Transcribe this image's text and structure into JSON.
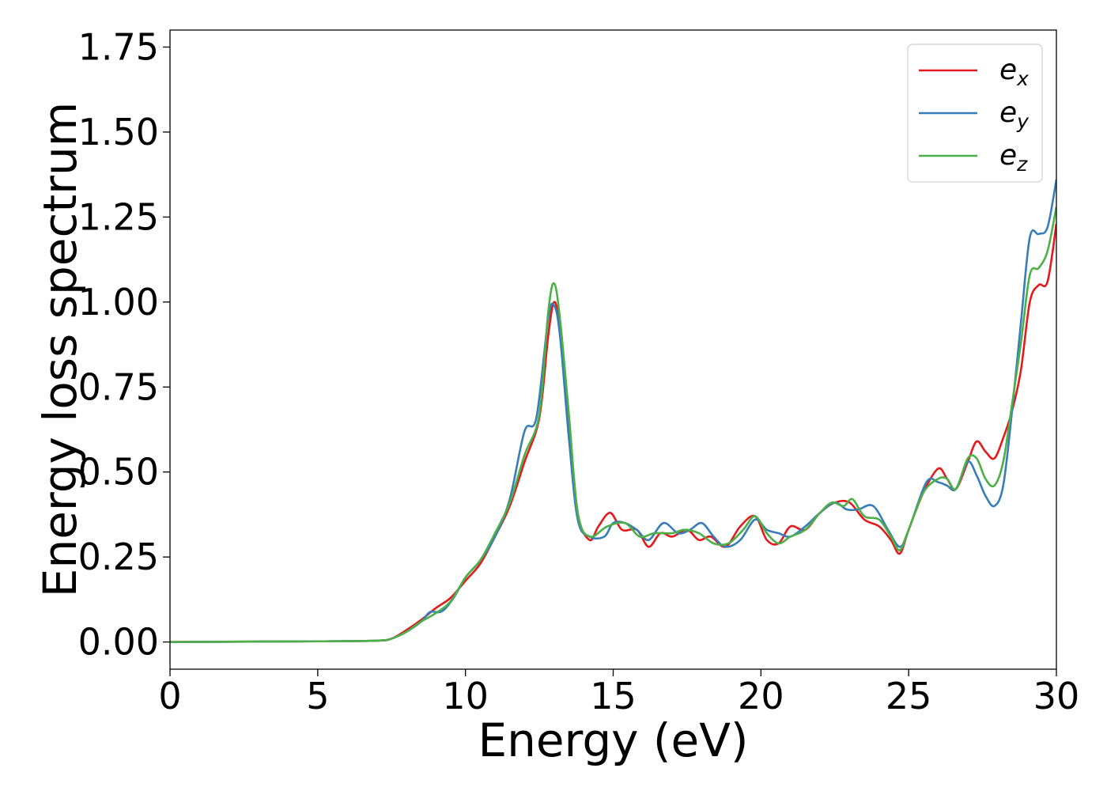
{
  "chart_data": {
    "type": "line",
    "title": "",
    "xlabel": "Energy (eV)",
    "ylabel": "Energy loss spectrum",
    "xlim": [
      0,
      30
    ],
    "ylim": [
      -0.08,
      1.8
    ],
    "xticks": [
      0,
      5,
      10,
      15,
      20,
      25,
      30
    ],
    "yticks": [
      0.0,
      0.25,
      0.5,
      0.75,
      1.0,
      1.25,
      1.5,
      1.75
    ],
    "xtick_labels": [
      "0",
      "5",
      "10",
      "15",
      "20",
      "25",
      "30"
    ],
    "ytick_labels": [
      "0.00",
      "0.25",
      "0.50",
      "0.75",
      "1.00",
      "1.25",
      "1.50",
      "1.75"
    ],
    "grid": false,
    "legend_position": "top-right",
    "series": [
      {
        "name": "e_x",
        "label_main": "e",
        "label_sub": "x",
        "color": "#e41a1c",
        "points": [
          [
            0,
            0.0
          ],
          [
            5,
            0.002
          ],
          [
            7,
            0.004
          ],
          [
            7.5,
            0.01
          ],
          [
            8,
            0.035
          ],
          [
            8.5,
            0.065
          ],
          [
            9,
            0.1
          ],
          [
            9.5,
            0.13
          ],
          [
            10,
            0.18
          ],
          [
            10.5,
            0.23
          ],
          [
            11,
            0.31
          ],
          [
            11.5,
            0.4
          ],
          [
            12,
            0.53
          ],
          [
            12.5,
            0.66
          ],
          [
            12.8,
            0.9
          ],
          [
            13,
            1.0
          ],
          [
            13.2,
            0.92
          ],
          [
            13.5,
            0.65
          ],
          [
            13.8,
            0.38
          ],
          [
            14.2,
            0.3
          ],
          [
            14.5,
            0.34
          ],
          [
            14.9,
            0.38
          ],
          [
            15.3,
            0.33
          ],
          [
            15.8,
            0.33
          ],
          [
            16.2,
            0.28
          ],
          [
            16.6,
            0.32
          ],
          [
            17,
            0.31
          ],
          [
            17.5,
            0.33
          ],
          [
            17.9,
            0.3
          ],
          [
            18.3,
            0.31
          ],
          [
            18.8,
            0.28
          ],
          [
            19.3,
            0.34
          ],
          [
            19.8,
            0.37
          ],
          [
            20.2,
            0.3
          ],
          [
            20.6,
            0.29
          ],
          [
            21,
            0.34
          ],
          [
            21.5,
            0.33
          ],
          [
            22,
            0.38
          ],
          [
            22.5,
            0.41
          ],
          [
            23,
            0.41
          ],
          [
            23.5,
            0.36
          ],
          [
            24,
            0.34
          ],
          [
            24.4,
            0.3
          ],
          [
            24.7,
            0.26
          ],
          [
            25,
            0.33
          ],
          [
            25.5,
            0.44
          ],
          [
            26,
            0.51
          ],
          [
            26.3,
            0.48
          ],
          [
            26.6,
            0.45
          ],
          [
            27,
            0.53
          ],
          [
            27.3,
            0.59
          ],
          [
            27.6,
            0.56
          ],
          [
            27.9,
            0.54
          ],
          [
            28.2,
            0.6
          ],
          [
            28.5,
            0.68
          ],
          [
            28.8,
            0.8
          ],
          [
            29.1,
            1.0
          ],
          [
            29.4,
            1.05
          ],
          [
            29.7,
            1.06
          ],
          [
            30,
            1.23
          ]
        ]
      },
      {
        "name": "e_y",
        "label_main": "e",
        "label_sub": "y",
        "color": "#377eb8",
        "points": [
          [
            0,
            0.0
          ],
          [
            5,
            0.002
          ],
          [
            7,
            0.004
          ],
          [
            7.5,
            0.01
          ],
          [
            8,
            0.03
          ],
          [
            8.5,
            0.06
          ],
          [
            8.8,
            0.088
          ],
          [
            9.2,
            0.09
          ],
          [
            9.6,
            0.13
          ],
          [
            10,
            0.19
          ],
          [
            10.5,
            0.24
          ],
          [
            11,
            0.31
          ],
          [
            11.5,
            0.42
          ],
          [
            12,
            0.62
          ],
          [
            12.4,
            0.66
          ],
          [
            12.8,
            0.95
          ],
          [
            13,
            0.99
          ],
          [
            13.2,
            0.9
          ],
          [
            13.5,
            0.6
          ],
          [
            13.8,
            0.36
          ],
          [
            14.2,
            0.31
          ],
          [
            14.7,
            0.31
          ],
          [
            15,
            0.35
          ],
          [
            15.4,
            0.35
          ],
          [
            15.8,
            0.33
          ],
          [
            16.2,
            0.3
          ],
          [
            16.7,
            0.35
          ],
          [
            17.2,
            0.32
          ],
          [
            17.6,
            0.33
          ],
          [
            18,
            0.35
          ],
          [
            18.4,
            0.31
          ],
          [
            18.8,
            0.28
          ],
          [
            19.3,
            0.3
          ],
          [
            19.8,
            0.36
          ],
          [
            20.2,
            0.33
          ],
          [
            20.6,
            0.32
          ],
          [
            21,
            0.31
          ],
          [
            21.5,
            0.34
          ],
          [
            22,
            0.38
          ],
          [
            22.5,
            0.41
          ],
          [
            22.9,
            0.39
          ],
          [
            23.3,
            0.39
          ],
          [
            23.8,
            0.4
          ],
          [
            24.3,
            0.33
          ],
          [
            24.7,
            0.28
          ],
          [
            25,
            0.33
          ],
          [
            25.6,
            0.47
          ],
          [
            26,
            0.47
          ],
          [
            26.3,
            0.46
          ],
          [
            26.6,
            0.45
          ],
          [
            27,
            0.53
          ],
          [
            27.3,
            0.49
          ],
          [
            27.6,
            0.43
          ],
          [
            27.9,
            0.4
          ],
          [
            28.2,
            0.46
          ],
          [
            28.5,
            0.68
          ],
          [
            28.8,
            0.94
          ],
          [
            29.1,
            1.19
          ],
          [
            29.4,
            1.2
          ],
          [
            29.7,
            1.22
          ],
          [
            30,
            1.36
          ]
        ]
      },
      {
        "name": "e_z",
        "label_main": "e",
        "label_sub": "z",
        "color": "#4daf4a",
        "points": [
          [
            0,
            0.0
          ],
          [
            5,
            0.002
          ],
          [
            7,
            0.004
          ],
          [
            7.5,
            0.01
          ],
          [
            8,
            0.03
          ],
          [
            8.5,
            0.06
          ],
          [
            9,
            0.085
          ],
          [
            9.5,
            0.12
          ],
          [
            10,
            0.19
          ],
          [
            10.5,
            0.24
          ],
          [
            11,
            0.32
          ],
          [
            11.5,
            0.41
          ],
          [
            12,
            0.55
          ],
          [
            12.5,
            0.67
          ],
          [
            12.8,
            0.97
          ],
          [
            13,
            1.055
          ],
          [
            13.2,
            0.95
          ],
          [
            13.5,
            0.67
          ],
          [
            13.8,
            0.38
          ],
          [
            14.2,
            0.31
          ],
          [
            14.8,
            0.34
          ],
          [
            15.4,
            0.35
          ],
          [
            15.9,
            0.31
          ],
          [
            16.4,
            0.32
          ],
          [
            17,
            0.32
          ],
          [
            17.4,
            0.33
          ],
          [
            17.9,
            0.32
          ],
          [
            18.4,
            0.29
          ],
          [
            18.9,
            0.29
          ],
          [
            19.4,
            0.33
          ],
          [
            19.8,
            0.37
          ],
          [
            20.2,
            0.32
          ],
          [
            20.6,
            0.29
          ],
          [
            21,
            0.31
          ],
          [
            21.5,
            0.33
          ],
          [
            22,
            0.38
          ],
          [
            22.4,
            0.41
          ],
          [
            22.8,
            0.4
          ],
          [
            23.1,
            0.42
          ],
          [
            23.5,
            0.37
          ],
          [
            24,
            0.36
          ],
          [
            24.4,
            0.31
          ],
          [
            24.7,
            0.27
          ],
          [
            25,
            0.33
          ],
          [
            25.5,
            0.44
          ],
          [
            26,
            0.48
          ],
          [
            26.3,
            0.48
          ],
          [
            26.6,
            0.45
          ],
          [
            27,
            0.54
          ],
          [
            27.3,
            0.54
          ],
          [
            27.6,
            0.48
          ],
          [
            27.9,
            0.46
          ],
          [
            28.2,
            0.53
          ],
          [
            28.5,
            0.7
          ],
          [
            28.8,
            0.88
          ],
          [
            29.1,
            1.08
          ],
          [
            29.4,
            1.1
          ],
          [
            29.7,
            1.15
          ],
          [
            30,
            1.28
          ]
        ]
      }
    ]
  }
}
